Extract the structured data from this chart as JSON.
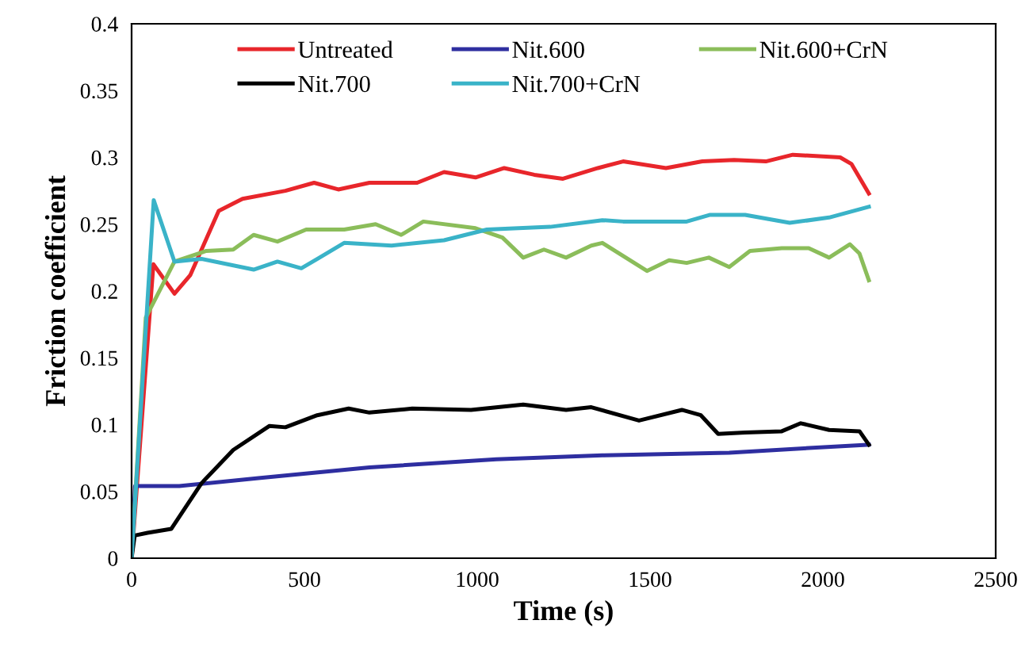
{
  "chart_data": {
    "type": "line",
    "xlabel": "Time (s)",
    "ylabel": "Friction coefficient",
    "xlim": [
      0,
      2500
    ],
    "xticks": [
      0,
      500,
      1000,
      1500,
      2000,
      2500
    ],
    "ylim": [
      0,
      0.4
    ],
    "yticks": [
      0,
      0.05,
      0.1,
      0.15,
      0.2,
      0.25,
      0.3,
      0.35,
      0.4
    ],
    "grid": false,
    "legend": "top",
    "marker": "none",
    "line_style": "solid",
    "series": [
      {
        "name": "Untreated",
        "color": "#e8262b",
        "x": [
          0,
          63,
          124,
          170,
          252,
          321,
          445,
          528,
          598,
          688,
          826,
          904,
          995,
          1078,
          1165,
          1248,
          1349,
          1422,
          1546,
          1651,
          1743,
          1835,
          1913,
          2050,
          2083,
          2133
        ],
        "values": [
          0,
          0.22,
          0.198,
          0.212,
          0.26,
          0.269,
          0.275,
          0.281,
          0.276,
          0.281,
          0.281,
          0.289,
          0.285,
          0.292,
          0.287,
          0.284,
          0.292,
          0.297,
          0.292,
          0.297,
          0.298,
          0.297,
          0.302,
          0.3,
          0.295,
          0.273
        ]
      },
      {
        "name": "Nit.600",
        "color": "#2e2ea0",
        "x": [
          0,
          10,
          138,
          367,
          688,
          1055,
          1362,
          1729,
          2133
        ],
        "values": [
          0,
          0.054,
          0.054,
          0.06,
          0.068,
          0.074,
          0.077,
          0.079,
          0.085
        ]
      },
      {
        "name": "Nit.600+CrN",
        "color": "#8bbd5a",
        "x": [
          0,
          41,
          124,
          216,
          294,
          353,
          422,
          505,
          615,
          706,
          780,
          844,
          995,
          1073,
          1133,
          1193,
          1257,
          1330,
          1362,
          1491,
          1555,
          1606,
          1670,
          1729,
          1789,
          1881,
          1959,
          2018,
          2078,
          2106,
          2133
        ],
        "values": [
          0,
          0.18,
          0.222,
          0.23,
          0.231,
          0.242,
          0.237,
          0.246,
          0.246,
          0.25,
          0.242,
          0.252,
          0.247,
          0.24,
          0.225,
          0.231,
          0.225,
          0.234,
          0.236,
          0.215,
          0.223,
          0.221,
          0.225,
          0.218,
          0.23,
          0.232,
          0.232,
          0.225,
          0.235,
          0.228,
          0.208
        ]
      },
      {
        "name": "Nit.700",
        "color": "#000000",
        "x": [
          0,
          9,
          46,
          115,
          202,
          294,
          399,
          445,
          537,
          628,
          688,
          812,
          982,
          1133,
          1257,
          1330,
          1468,
          1592,
          1647,
          1697,
          1775,
          1881,
          1936,
          2018,
          2106,
          2133
        ],
        "values": [
          0,
          0.017,
          0.019,
          0.022,
          0.056,
          0.081,
          0.099,
          0.098,
          0.107,
          0.112,
          0.109,
          0.112,
          0.111,
          0.115,
          0.111,
          0.113,
          0.103,
          0.111,
          0.107,
          0.093,
          0.094,
          0.095,
          0.101,
          0.096,
          0.095,
          0.085
        ]
      },
      {
        "name": "Nit.700+CrN",
        "color": "#3ab3c8",
        "x": [
          0,
          64,
          124,
          202,
          353,
          422,
          491,
          537,
          615,
          752,
          904,
          1028,
          1211,
          1362,
          1422,
          1606,
          1674,
          1775,
          1904,
          2018,
          2133
        ],
        "values": [
          0,
          0.268,
          0.222,
          0.224,
          0.216,
          0.222,
          0.217,
          0.224,
          0.236,
          0.234,
          0.238,
          0.246,
          0.248,
          0.253,
          0.252,
          0.252,
          0.257,
          0.257,
          0.251,
          0.255,
          0.263
        ]
      }
    ]
  }
}
